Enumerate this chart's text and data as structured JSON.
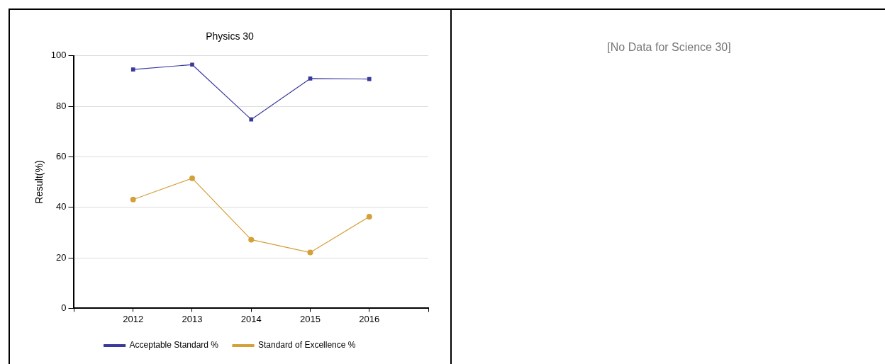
{
  "chart_data": [
    {
      "type": "line",
      "title": "Physics 30",
      "ylabel": "Result(%)",
      "x": [
        2012,
        2013,
        2014,
        2015,
        2016
      ],
      "xlim": [
        2011,
        2017
      ],
      "xticks": [
        {
          "value": 2011,
          "label": null
        },
        2012,
        2013,
        2014,
        2015,
        2016,
        {
          "value": 2017,
          "label": null
        }
      ],
      "ylim": [
        0,
        100
      ],
      "yticks": [
        0,
        20,
        40,
        60,
        80,
        100
      ],
      "grid": "y",
      "legend": "bottom",
      "line_style": "solid",
      "series": [
        {
          "name": "Acceptable Standard %",
          "color": "#3a3a9e",
          "marker": "square",
          "values": [
            94.6,
            96.5,
            74.8,
            91.0,
            90.8
          ]
        },
        {
          "name": "Standard of Excellence %",
          "color": "#d4a03a",
          "marker": "circle",
          "values": [
            43.1,
            51.5,
            27.2,
            22.1,
            36.3
          ]
        }
      ]
    },
    {
      "type": "other",
      "title": "[No Data for Science 30]"
    }
  ]
}
